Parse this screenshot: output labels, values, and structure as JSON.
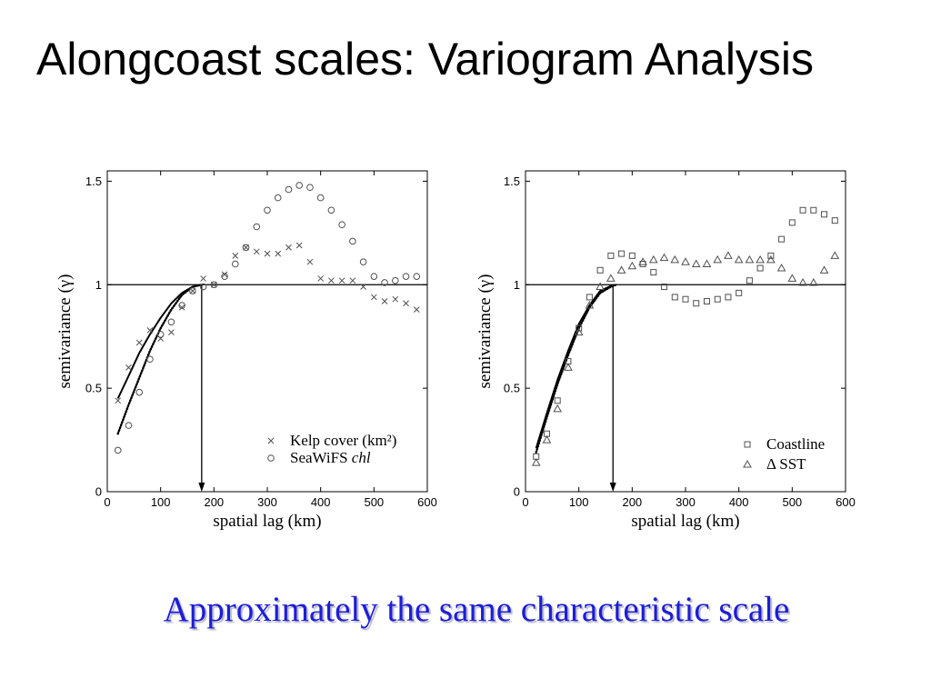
{
  "slide": {
    "title": "Alongcoast scales: Variogram Analysis",
    "caption": "Approximately the same characteristic scale",
    "caption_color": "#1d1dd6"
  },
  "chart_data": [
    {
      "type": "scatter",
      "xlabel": "spatial lag (km)",
      "ylabel": "semivariance (γ)",
      "xlim": [
        0,
        600
      ],
      "ylim": [
        0,
        1.55
      ],
      "xticks": [
        0,
        100,
        200,
        300,
        400,
        500,
        600
      ],
      "xtick_labels": [
        "0",
        "100",
        "200",
        "300",
        "400",
        "500",
        "600"
      ],
      "yticks": [
        0,
        0.5,
        1,
        1.5
      ],
      "ytick_labels": [
        "0",
        "0.5",
        "1",
        "1.5"
      ],
      "grid": false,
      "legend_position": "bottom-right",
      "marker_color": "#505050",
      "reference_line_y": 1,
      "range_arrow_x": 177,
      "x": [
        20,
        40,
        60,
        80,
        100,
        120,
        140,
        160,
        180,
        200,
        220,
        240,
        260,
        280,
        300,
        320,
        340,
        360,
        380,
        400,
        420,
        440,
        460,
        480,
        500,
        520,
        540,
        560,
        580
      ],
      "series": [
        {
          "name": "Kelp cover (km²)",
          "marker": "x",
          "y": [
            0.44,
            0.6,
            0.72,
            0.78,
            0.74,
            0.77,
            0.89,
            0.97,
            1.03,
            1.0,
            1.05,
            1.14,
            1.18,
            1.16,
            1.15,
            1.15,
            1.18,
            1.19,
            1.11,
            1.03,
            1.02,
            1.02,
            1.02,
            0.99,
            0.94,
            0.92,
            0.93,
            0.91,
            0.88
          ]
        },
        {
          "name": "SeaWiFS chl",
          "name_italic": "chl",
          "marker": "circle",
          "y": [
            0.2,
            0.32,
            0.48,
            0.64,
            0.76,
            0.82,
            0.9,
            0.97,
            0.99,
            1.0,
            1.04,
            1.1,
            1.18,
            1.28,
            1.36,
            1.42,
            1.46,
            1.48,
            1.47,
            1.42,
            1.36,
            1.29,
            1.21,
            1.11,
            1.04,
            1.01,
            1.02,
            1.04,
            1.04
          ]
        }
      ],
      "fits": [
        {
          "style": "solid",
          "x": [
            20,
            40,
            60,
            80,
            100,
            120,
            140,
            160,
            175
          ],
          "y": [
            0.45,
            0.56,
            0.67,
            0.76,
            0.84,
            0.91,
            0.96,
            0.99,
            1.0
          ]
        },
        {
          "style": "dotted",
          "x": [
            20,
            40,
            60,
            80,
            100,
            120,
            140,
            160,
            178
          ],
          "y": [
            0.28,
            0.42,
            0.55,
            0.68,
            0.79,
            0.88,
            0.95,
            0.99,
            1.0
          ]
        }
      ]
    },
    {
      "type": "scatter",
      "xlabel": "spatial lag (km)",
      "ylabel": "semivariance (γ)",
      "xlim": [
        0,
        600
      ],
      "ylim": [
        0,
        1.55
      ],
      "xticks": [
        0,
        100,
        200,
        300,
        400,
        500,
        600
      ],
      "xtick_labels": [
        "0",
        "100",
        "200",
        "300",
        "400",
        "500",
        "600"
      ],
      "yticks": [
        0,
        0.5,
        1,
        1.5
      ],
      "ytick_labels": [
        "0",
        "0.5",
        "1",
        "1.5"
      ],
      "grid": false,
      "legend_position": "bottom-right",
      "marker_color": "#505050",
      "reference_line_y": 1,
      "range_arrow_x": 164,
      "x": [
        20,
        40,
        60,
        80,
        100,
        120,
        140,
        160,
        180,
        200,
        220,
        240,
        260,
        280,
        300,
        320,
        340,
        360,
        380,
        400,
        420,
        440,
        460,
        480,
        500,
        520,
        540,
        560,
        580
      ],
      "series": [
        {
          "name": "Coastline",
          "marker": "square",
          "y": [
            0.17,
            0.28,
            0.44,
            0.63,
            0.79,
            0.94,
            1.07,
            1.14,
            1.15,
            1.14,
            1.1,
            1.06,
            0.99,
            0.94,
            0.93,
            0.91,
            0.92,
            0.93,
            0.94,
            0.96,
            1.02,
            1.08,
            1.14,
            1.22,
            1.3,
            1.36,
            1.36,
            1.34,
            1.31
          ]
        },
        {
          "name": "Δ SST",
          "marker": "triangle",
          "y": [
            0.14,
            0.25,
            0.4,
            0.6,
            0.77,
            0.9,
            0.99,
            1.03,
            1.07,
            1.09,
            1.11,
            1.12,
            1.13,
            1.12,
            1.11,
            1.1,
            1.1,
            1.12,
            1.14,
            1.12,
            1.12,
            1.12,
            1.12,
            1.08,
            1.03,
            1.01,
            1.01,
            1.07,
            1.14
          ]
        }
      ],
      "fits": [
        {
          "style": "solid",
          "x": [
            20,
            40,
            60,
            80,
            100,
            120,
            140,
            165
          ],
          "y": [
            0.21,
            0.38,
            0.54,
            0.68,
            0.81,
            0.9,
            0.97,
            1.0
          ]
        },
        {
          "style": "dotted",
          "x": [
            20,
            40,
            60,
            80,
            100,
            120,
            140,
            160,
            170
          ],
          "y": [
            0.19,
            0.36,
            0.52,
            0.66,
            0.79,
            0.89,
            0.96,
            0.99,
            1.0
          ]
        }
      ]
    }
  ]
}
